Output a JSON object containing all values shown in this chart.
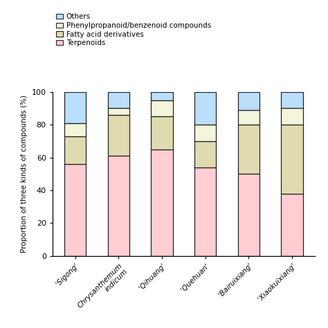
{
  "categories": [
    "'Sigong'",
    "Chrysanthemum\nindicum",
    "'Qihuang'",
    "'Quehuan'",
    "'Bairuixiang'",
    "'Xiaokuixiang'"
  ],
  "series": {
    "Terpenoids": [
      56,
      61,
      65,
      54,
      50,
      38
    ],
    "Fatty acid derivatives": [
      17,
      25,
      20,
      16,
      30,
      42
    ],
    "Phenylpropanoid/benzenoid compounds": [
      8,
      4,
      10,
      10,
      9,
      10
    ],
    "Others": [
      19,
      10,
      5,
      20,
      11,
      10
    ]
  },
  "colors": {
    "Terpenoids": "#FFCDD2",
    "Fatty acid derivatives": "#E0DAB0",
    "Phenylpropanoid/benzenoid compounds": "#F5F5DC",
    "Others": "#BBDEFB"
  },
  "ylabel": "Proportion of three kinds of compounds (%)",
  "ylim": [
    0,
    100
  ],
  "yticks": [
    0,
    20,
    40,
    60,
    80,
    100
  ],
  "legend_order": [
    "Others",
    "Phenylpropanoid/benzenoid compounds",
    "Fatty acid derivatives",
    "Terpenoids"
  ],
  "bar_width": 0.5,
  "edgecolor": "#222222"
}
